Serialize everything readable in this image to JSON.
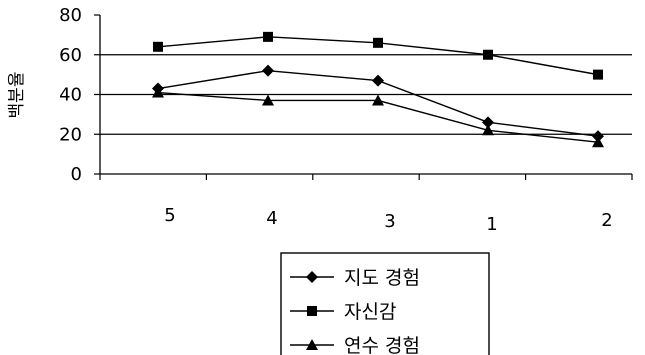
{
  "chart_data": {
    "type": "line",
    "categories": [
      "5",
      "4",
      "3",
      "1",
      "2"
    ],
    "ylabel": "백분율",
    "ylim": [
      0,
      80
    ],
    "yticks": [
      0,
      20,
      40,
      60,
      80
    ],
    "grid": true,
    "legend_position": "bottom",
    "series": [
      {
        "name": "지도 경험",
        "marker": "diamond",
        "values": [
          43,
          52,
          47,
          26,
          19
        ]
      },
      {
        "name": "자신감",
        "marker": "square",
        "values": [
          64,
          69,
          66,
          60,
          50
        ]
      },
      {
        "name": "연수 경험",
        "marker": "triangle",
        "values": [
          41,
          37,
          37,
          22,
          16
        ]
      }
    ]
  },
  "colors": {
    "line": "#000000",
    "background": "#ffffff"
  }
}
